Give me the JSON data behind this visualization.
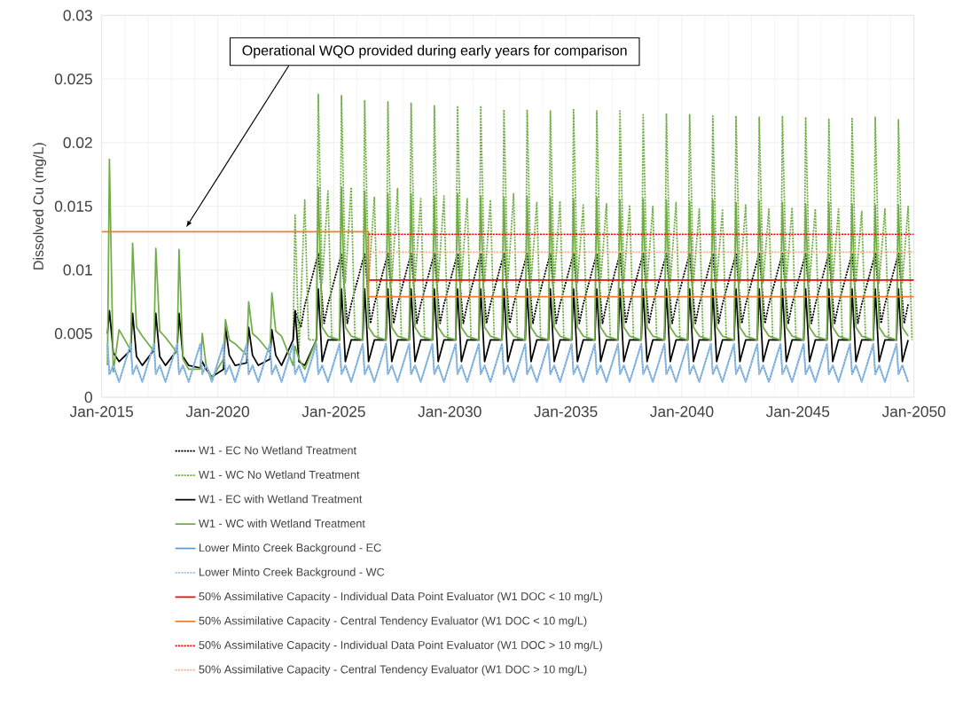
{
  "chart_data": {
    "type": "line",
    "ylabel": "Dissolved Cu (mg/L)",
    "xlim": [
      "2015-01",
      "2050-01"
    ],
    "ylim": [
      0,
      0.03
    ],
    "xticks": [
      {
        "value": "2015-01",
        "label": "Jan-2015"
      },
      {
        "value": "2020-01",
        "label": "Jan-2020"
      },
      {
        "value": "2025-01",
        "label": "Jan-2025"
      },
      {
        "value": "2030-01",
        "label": "Jan-2030"
      },
      {
        "value": "2035-01",
        "label": "Jan-2035"
      },
      {
        "value": "2040-01",
        "label": "Jan-2040"
      },
      {
        "value": "2045-01",
        "label": "Jan-2045"
      },
      {
        "value": "2050-01",
        "label": "Jan-2050"
      }
    ],
    "yticks": [
      0,
      0.005,
      0.01,
      0.015,
      0.02,
      0.025,
      0.03
    ],
    "grid": true,
    "legend": "bottom",
    "annotations": [
      "Operational WQO provided during early years for comparison"
    ],
    "series": [
      {
        "name": "W1 - EC No Wetland Treatment",
        "color": "#000000",
        "line_style": "dotted",
        "x": [
          "2023-05",
          "2023-08",
          "2023-10",
          "2024-05",
          "2024-08",
          "2024-10",
          "2025-05",
          "2025-08",
          "2025-10",
          "2026-05",
          "2026-08",
          "2026-10",
          "2027-05",
          "2027-08",
          "2027-10",
          "2028-05",
          "2028-08",
          "2028-10",
          "2029-05",
          "2029-08",
          "2029-10",
          "2030-05",
          "2030-08",
          "2030-10",
          "2031-05",
          "2031-08",
          "2031-10",
          "2032-05",
          "2032-08",
          "2032-10",
          "2033-05",
          "2033-08",
          "2033-10",
          "2034-05",
          "2034-08",
          "2034-10",
          "2035-05",
          "2035-08",
          "2035-10",
          "2036-05",
          "2036-08",
          "2036-10",
          "2037-05",
          "2037-08",
          "2037-10",
          "2038-05",
          "2038-08",
          "2038-10",
          "2039-05",
          "2039-08",
          "2039-10",
          "2040-05",
          "2040-08",
          "2040-10",
          "2041-05",
          "2041-08",
          "2041-10",
          "2042-05",
          "2042-08",
          "2042-10",
          "2043-05",
          "2043-08",
          "2043-10",
          "2044-05",
          "2044-08",
          "2044-10",
          "2045-05",
          "2045-08",
          "2045-10",
          "2046-05",
          "2046-08",
          "2046-10",
          "2047-05",
          "2047-08",
          "2047-10",
          "2048-05",
          "2048-08",
          "2048-10",
          "2049-05",
          "2049-08",
          "2049-10"
        ],
        "values": [
          0.0068,
          0.0055,
          0.0072,
          0.0113,
          0.0058,
          0.0073,
          0.0113,
          0.0058,
          0.0073,
          0.0113,
          0.0058,
          0.0073,
          0.0113,
          0.0058,
          0.0073,
          0.0113,
          0.0058,
          0.0073,
          0.0113,
          0.0058,
          0.0073,
          0.0113,
          0.0058,
          0.0073,
          0.0113,
          0.0058,
          0.0073,
          0.0113,
          0.0058,
          0.0073,
          0.0113,
          0.0058,
          0.0073,
          0.0113,
          0.0058,
          0.0073,
          0.0113,
          0.0058,
          0.0073,
          0.0113,
          0.0058,
          0.0073,
          0.0113,
          0.0058,
          0.0073,
          0.0113,
          0.0058,
          0.0073,
          0.0113,
          0.0058,
          0.0073,
          0.0113,
          0.0058,
          0.0073,
          0.0113,
          0.0058,
          0.0073,
          0.0113,
          0.0058,
          0.0073,
          0.0113,
          0.0058,
          0.0073,
          0.0113,
          0.0058,
          0.0073,
          0.0113,
          0.0058,
          0.0073,
          0.0113,
          0.0058,
          0.0073,
          0.0113,
          0.0058,
          0.0073,
          0.0113,
          0.0058,
          0.0073,
          0.0113,
          0.0058,
          0.0073
        ]
      },
      {
        "name": "W1 - WC No Wetland Treatment",
        "color": "#70ad47",
        "line_style": "dotted",
        "x": [
          "2023-04",
          "2023-05",
          "2023-07",
          "2023-10",
          "2023-12",
          "2024-04",
          "2024-05",
          "2024-07",
          "2024-10",
          "2024-12",
          "2025-04",
          "2025-05",
          "2025-07",
          "2025-10",
          "2025-12",
          "2026-04",
          "2026-05",
          "2026-07",
          "2026-10",
          "2026-12",
          "2027-04",
          "2027-05",
          "2027-07",
          "2027-10",
          "2027-12",
          "2028-04",
          "2028-05",
          "2028-07",
          "2028-10",
          "2028-12",
          "2029-04",
          "2029-05",
          "2029-07",
          "2029-10",
          "2029-12",
          "2030-04",
          "2030-05",
          "2030-07",
          "2030-10",
          "2030-12",
          "2031-04",
          "2031-05",
          "2031-07",
          "2031-10",
          "2031-12",
          "2032-04",
          "2032-05",
          "2032-07",
          "2032-10",
          "2032-12",
          "2033-04",
          "2033-05",
          "2033-07",
          "2033-10",
          "2033-12",
          "2034-04",
          "2034-05",
          "2034-07",
          "2034-10",
          "2034-12",
          "2035-04",
          "2035-05",
          "2035-07",
          "2035-10",
          "2035-12",
          "2036-04",
          "2036-05",
          "2036-07",
          "2036-10",
          "2036-12",
          "2037-04",
          "2037-05",
          "2037-07",
          "2037-10",
          "2037-12",
          "2038-04",
          "2038-05",
          "2038-07",
          "2038-10",
          "2038-12",
          "2039-04",
          "2039-05",
          "2039-07",
          "2039-10",
          "2039-12",
          "2040-04",
          "2040-05",
          "2040-07",
          "2040-10",
          "2040-12",
          "2041-04",
          "2041-05",
          "2041-07",
          "2041-10",
          "2041-12",
          "2042-04",
          "2042-05",
          "2042-07",
          "2042-10",
          "2042-12",
          "2043-04",
          "2043-05",
          "2043-07",
          "2043-10",
          "2043-12",
          "2044-04",
          "2044-05",
          "2044-07",
          "2044-10",
          "2044-12",
          "2045-04",
          "2045-05",
          "2045-07",
          "2045-10",
          "2045-12",
          "2046-04",
          "2046-05",
          "2046-07",
          "2046-10",
          "2046-12",
          "2047-04",
          "2047-05",
          "2047-07",
          "2047-10",
          "2047-12",
          "2048-04",
          "2048-05",
          "2048-07",
          "2048-10",
          "2048-12",
          "2049-04",
          "2049-05",
          "2049-07",
          "2049-10",
          "2049-12"
        ],
        "values": [
          0.0045,
          0.0143,
          0.0035,
          0.0155,
          0.0045,
          0.0045,
          0.0238,
          0.009,
          0.0162,
          0.0045,
          0.0045,
          0.0237,
          0.009,
          0.0165,
          0.0045,
          0.0045,
          0.0233,
          0.009,
          0.0157,
          0.0045,
          0.0045,
          0.0232,
          0.009,
          0.0164,
          0.0045,
          0.0045,
          0.0231,
          0.009,
          0.0156,
          0.0045,
          0.0045,
          0.0229,
          0.009,
          0.0158,
          0.0045,
          0.0045,
          0.0229,
          0.009,
          0.0156,
          0.0045,
          0.0045,
          0.0229,
          0.009,
          0.0155,
          0.0045,
          0.0045,
          0.0226,
          0.009,
          0.016,
          0.0045,
          0.0045,
          0.0226,
          0.009,
          0.0153,
          0.0045,
          0.0045,
          0.0225,
          0.009,
          0.0154,
          0.0045,
          0.0045,
          0.0226,
          0.009,
          0.0151,
          0.0045,
          0.0045,
          0.0225,
          0.009,
          0.0152,
          0.0045,
          0.0045,
          0.0225,
          0.009,
          0.0151,
          0.0045,
          0.0045,
          0.0222,
          0.009,
          0.015,
          0.0045,
          0.0045,
          0.0223,
          0.009,
          0.0153,
          0.0045,
          0.0045,
          0.0222,
          0.009,
          0.0148,
          0.0045,
          0.0045,
          0.0221,
          0.009,
          0.0147,
          0.0045,
          0.0045,
          0.0221,
          0.009,
          0.0151,
          0.0045,
          0.0045,
          0.022,
          0.009,
          0.0148,
          0.0045,
          0.0045,
          0.0221,
          0.009,
          0.0149,
          0.0045,
          0.0045,
          0.022,
          0.009,
          0.0148,
          0.0045,
          0.0045,
          0.0219,
          0.009,
          0.0148,
          0.0045,
          0.0045,
          0.0219,
          0.009,
          0.0146,
          0.0045,
          0.0045,
          0.022,
          0.009,
          0.0148,
          0.0045,
          0.0045,
          0.0218,
          0.009,
          0.015,
          0.0045
        ]
      },
      {
        "name": "W1 - EC with Wetland Treatment",
        "color": "#000000",
        "line_style": "solid",
        "x": [
          "2015-04",
          "2015-05",
          "2015-07",
          "2015-10",
          "2016-04",
          "2016-05",
          "2016-07",
          "2016-10",
          "2017-04",
          "2017-05",
          "2017-07",
          "2017-10",
          "2018-04",
          "2018-05",
          "2018-07",
          "2018-10",
          "2019-04",
          "2019-05",
          "2019-07",
          "2019-10",
          "2020-04",
          "2020-05",
          "2020-07",
          "2020-10",
          "2021-04",
          "2021-05",
          "2021-07",
          "2021-10",
          "2022-04",
          "2022-05",
          "2022-07",
          "2022-10",
          "2023-04",
          "2023-05",
          "2023-07",
          "2023-10",
          "2024-04",
          "2024-05",
          "2024-07",
          "2024-10",
          "2025-04",
          "2025-05",
          "2025-07",
          "2025-10",
          "2026-04",
          "2026-05",
          "2026-07",
          "2026-10",
          "2027-04",
          "2027-05",
          "2027-07",
          "2027-10",
          "2028-04",
          "2028-05",
          "2028-07",
          "2028-10",
          "2029-04",
          "2029-05",
          "2029-07",
          "2029-10",
          "2030-04",
          "2030-05",
          "2030-07",
          "2030-10",
          "2031-04",
          "2031-05",
          "2031-07",
          "2031-10",
          "2032-04",
          "2032-05",
          "2032-07",
          "2032-10",
          "2033-04",
          "2033-05",
          "2033-07",
          "2033-10",
          "2034-04",
          "2034-05",
          "2034-07",
          "2034-10",
          "2035-04",
          "2035-05",
          "2035-07",
          "2035-10",
          "2036-04",
          "2036-05",
          "2036-07",
          "2036-10",
          "2037-04",
          "2037-05",
          "2037-07",
          "2037-10",
          "2038-04",
          "2038-05",
          "2038-07",
          "2038-10",
          "2039-04",
          "2039-05",
          "2039-07",
          "2039-10",
          "2040-04",
          "2040-05",
          "2040-07",
          "2040-10",
          "2041-04",
          "2041-05",
          "2041-07",
          "2041-10",
          "2042-04",
          "2042-05",
          "2042-07",
          "2042-10",
          "2043-04",
          "2043-05",
          "2043-07",
          "2043-10",
          "2044-04",
          "2044-05",
          "2044-07",
          "2044-10",
          "2045-04",
          "2045-05",
          "2045-07",
          "2045-10",
          "2046-04",
          "2046-05",
          "2046-07",
          "2046-10",
          "2047-04",
          "2047-05",
          "2047-07",
          "2047-10",
          "2048-04",
          "2048-05",
          "2048-07",
          "2048-10",
          "2049-04",
          "2049-05",
          "2049-07",
          "2049-10"
        ],
        "values": [
          0.005,
          0.0068,
          0.0035,
          0.0028,
          0.0037,
          0.0066,
          0.0032,
          0.0025,
          0.0037,
          0.0066,
          0.0032,
          0.0025,
          0.0037,
          0.0066,
          0.0032,
          0.0025,
          0.0023,
          0.0028,
          0.0022,
          0.0016,
          0.0022,
          0.0055,
          0.0033,
          0.0025,
          0.0027,
          0.0055,
          0.0033,
          0.0025,
          0.003,
          0.0053,
          0.0033,
          0.0025,
          0.0045,
          0.0068,
          0.0028,
          0.0025,
          0.0045,
          0.0085,
          0.0028,
          0.0045,
          0.0045,
          0.0085,
          0.0028,
          0.0045,
          0.0045,
          0.0085,
          0.0028,
          0.0045,
          0.0045,
          0.0085,
          0.0028,
          0.0045,
          0.0045,
          0.0085,
          0.0028,
          0.0045,
          0.0045,
          0.0085,
          0.0028,
          0.0045,
          0.0045,
          0.0085,
          0.0028,
          0.0045,
          0.0045,
          0.0085,
          0.0028,
          0.0045,
          0.0045,
          0.0085,
          0.0028,
          0.0045,
          0.0045,
          0.0085,
          0.0028,
          0.0045,
          0.0045,
          0.0085,
          0.0028,
          0.0045,
          0.0045,
          0.0085,
          0.0028,
          0.0045,
          0.0045,
          0.0085,
          0.0028,
          0.0045,
          0.0045,
          0.0085,
          0.0028,
          0.0045,
          0.0045,
          0.0085,
          0.0028,
          0.0045,
          0.0045,
          0.0085,
          0.0028,
          0.0045,
          0.0045,
          0.0085,
          0.0028,
          0.0045,
          0.0045,
          0.0085,
          0.0028,
          0.0045,
          0.0045,
          0.0085,
          0.0028,
          0.0045,
          0.0045,
          0.0085,
          0.0028,
          0.0045,
          0.0045,
          0.0085,
          0.0028,
          0.0045,
          0.0045,
          0.0085,
          0.0028,
          0.0045,
          0.0045,
          0.0085,
          0.0028,
          0.0045,
          0.0045,
          0.0085,
          0.0028,
          0.0045,
          0.0045,
          0.0085,
          0.0028,
          0.0045,
          0.0045,
          0.0085,
          0.0028,
          0.0045
        ]
      },
      {
        "name": "W1 - WC with Wetland Treatment",
        "color": "#70ad47",
        "line_style": "solid",
        "x": [
          "2015-04",
          "2015-05",
          "2015-07",
          "2015-10",
          "2016-04",
          "2016-05",
          "2016-07",
          "2016-10",
          "2017-04",
          "2017-05",
          "2017-07",
          "2017-10",
          "2018-04",
          "2018-05",
          "2018-07",
          "2018-10",
          "2019-04",
          "2019-05",
          "2019-07",
          "2019-10",
          "2020-04",
          "2020-05",
          "2020-07",
          "2020-10",
          "2021-04",
          "2021-05",
          "2021-07",
          "2021-10",
          "2022-04",
          "2022-05",
          "2022-07",
          "2022-10",
          "2023-04",
          "2023-05",
          "2023-07",
          "2023-10",
          "2024-04",
          "2024-05",
          "2024-07",
          "2024-10",
          "2025-04",
          "2025-05",
          "2025-07",
          "2025-10",
          "2026-04",
          "2026-05",
          "2026-07",
          "2026-10",
          "2027-04",
          "2027-05",
          "2027-07",
          "2027-10",
          "2028-04",
          "2028-05",
          "2028-07",
          "2028-10",
          "2029-04",
          "2029-05",
          "2029-07",
          "2029-10",
          "2030-04",
          "2030-05",
          "2030-07",
          "2030-10",
          "2031-04",
          "2031-05",
          "2031-07",
          "2031-10",
          "2032-04",
          "2032-05",
          "2032-07",
          "2032-10",
          "2033-04",
          "2033-05",
          "2033-07",
          "2033-10",
          "2034-04",
          "2034-05",
          "2034-07",
          "2034-10",
          "2035-04",
          "2035-05",
          "2035-07",
          "2035-10",
          "2036-04",
          "2036-05",
          "2036-07",
          "2036-10",
          "2037-04",
          "2037-05",
          "2037-07",
          "2037-10",
          "2038-04",
          "2038-05",
          "2038-07",
          "2038-10",
          "2039-04",
          "2039-05",
          "2039-07",
          "2039-10",
          "2040-04",
          "2040-05",
          "2040-07",
          "2040-10",
          "2041-04",
          "2041-05",
          "2041-07",
          "2041-10",
          "2042-04",
          "2042-05",
          "2042-07",
          "2042-10",
          "2043-04",
          "2043-05",
          "2043-07",
          "2043-10",
          "2044-04",
          "2044-05",
          "2044-07",
          "2044-10",
          "2045-04",
          "2045-05",
          "2045-07",
          "2045-10",
          "2046-04",
          "2046-05",
          "2046-07",
          "2046-10",
          "2047-04",
          "2047-05",
          "2047-07",
          "2047-10",
          "2048-04",
          "2048-05",
          "2048-07",
          "2048-10",
          "2049-04",
          "2049-05",
          "2049-07",
          "2049-10"
        ],
        "values": [
          0.0025,
          0.0187,
          0.002,
          0.0053,
          0.0037,
          0.0121,
          0.0055,
          0.0048,
          0.0036,
          0.0117,
          0.0052,
          0.0047,
          0.0035,
          0.0116,
          0.003,
          0.0022,
          0.0022,
          0.005,
          0.0025,
          0.0015,
          0.003,
          0.0061,
          0.0045,
          0.0042,
          0.0033,
          0.0075,
          0.005,
          0.0046,
          0.0035,
          0.0082,
          0.0052,
          0.0048,
          0.0025,
          0.004,
          0.003,
          0.0022,
          0.0045,
          0.0165,
          0.0055,
          0.0048,
          0.0045,
          0.0165,
          0.0055,
          0.0048,
          0.0045,
          0.0162,
          0.0055,
          0.0048,
          0.0045,
          0.016,
          0.0055,
          0.0048,
          0.0045,
          0.016,
          0.0055,
          0.0048,
          0.0045,
          0.0158,
          0.0055,
          0.0048,
          0.0045,
          0.016,
          0.0055,
          0.0048,
          0.0045,
          0.0158,
          0.0055,
          0.0048,
          0.0045,
          0.0157,
          0.0055,
          0.0048,
          0.0045,
          0.0158,
          0.0055,
          0.0048,
          0.0045,
          0.0157,
          0.0055,
          0.0048,
          0.0045,
          0.0156,
          0.0055,
          0.0048,
          0.0045,
          0.0157,
          0.0055,
          0.0048,
          0.0045,
          0.0155,
          0.0055,
          0.0048,
          0.0045,
          0.0156,
          0.0055,
          0.0048,
          0.0045,
          0.0155,
          0.0055,
          0.0048,
          0.0045,
          0.0154,
          0.0055,
          0.0048,
          0.0045,
          0.0155,
          0.0055,
          0.0048,
          0.0045,
          0.0153,
          0.0055,
          0.0048,
          0.0045,
          0.0154,
          0.0055,
          0.0048,
          0.0045,
          0.0153,
          0.0055,
          0.0048,
          0.0045,
          0.0152,
          0.0055,
          0.0048,
          0.0045,
          0.0153,
          0.0055,
          0.0048,
          0.0045,
          0.0152,
          0.0055,
          0.0048,
          0.0045,
          0.0151,
          0.0055,
          0.0048,
          0.0045,
          0.0151,
          0.0055,
          0.0048
        ]
      },
      {
        "name": "Lower Minto Creek Background - EC",
        "color": "#5b9bd5",
        "line_style": "solid",
        "x": [
          "2015-04",
          "2015-05",
          "2015-07",
          "2015-10",
          "2016-04",
          "2016-05",
          "2016-07",
          "2016-10",
          "2017-04",
          "2017-05",
          "2017-07",
          "2017-10",
          "2018-04",
          "2018-05",
          "2018-07",
          "2018-10",
          "2019-04",
          "2019-05",
          "2019-07",
          "2019-10",
          "2020-04",
          "2020-05",
          "2020-07",
          "2020-10",
          "2021-04",
          "2021-05",
          "2021-07",
          "2021-10",
          "2022-04",
          "2022-05",
          "2022-07",
          "2022-10",
          "2023-04",
          "2023-05",
          "2023-07",
          "2023-10",
          "2024-04",
          "2024-05",
          "2024-07",
          "2024-10",
          "2025-04",
          "2025-05",
          "2025-07",
          "2025-10",
          "2026-04",
          "2026-05",
          "2026-07",
          "2026-10",
          "2027-04",
          "2027-05",
          "2027-07",
          "2027-10",
          "2028-04",
          "2028-05",
          "2028-07",
          "2028-10",
          "2029-04",
          "2029-05",
          "2029-07",
          "2029-10",
          "2030-04",
          "2030-05",
          "2030-07",
          "2030-10",
          "2031-04",
          "2031-05",
          "2031-07",
          "2031-10",
          "2032-04",
          "2032-05",
          "2032-07",
          "2032-10",
          "2033-04",
          "2033-05",
          "2033-07",
          "2033-10",
          "2034-04",
          "2034-05",
          "2034-07",
          "2034-10",
          "2035-04",
          "2035-05",
          "2035-07",
          "2035-10",
          "2036-04",
          "2036-05",
          "2036-07",
          "2036-10",
          "2037-04",
          "2037-05",
          "2037-07",
          "2037-10",
          "2038-04",
          "2038-05",
          "2038-07",
          "2038-10",
          "2039-04",
          "2039-05",
          "2039-07",
          "2039-10",
          "2040-04",
          "2040-05",
          "2040-07",
          "2040-10",
          "2041-04",
          "2041-05",
          "2041-07",
          "2041-10",
          "2042-04",
          "2042-05",
          "2042-07",
          "2042-10",
          "2043-04",
          "2043-05",
          "2043-07",
          "2043-10",
          "2044-04",
          "2044-05",
          "2044-07",
          "2044-10",
          "2045-04",
          "2045-05",
          "2045-07",
          "2045-10",
          "2046-04",
          "2046-05",
          "2046-07",
          "2046-10",
          "2047-04",
          "2047-05",
          "2047-07",
          "2047-10",
          "2048-04",
          "2048-05",
          "2048-07",
          "2048-10",
          "2049-04",
          "2049-05",
          "2049-07",
          "2049-10"
        ],
        "values": [
          0.0042,
          0.0018,
          0.0025,
          0.0012,
          0.0042,
          0.0018,
          0.0025,
          0.0012,
          0.0042,
          0.0018,
          0.0025,
          0.0012,
          0.0042,
          0.0018,
          0.0025,
          0.0012,
          0.0042,
          0.0018,
          0.0025,
          0.0012,
          0.0042,
          0.0018,
          0.0025,
          0.0012,
          0.0042,
          0.0018,
          0.0025,
          0.0012,
          0.0042,
          0.0018,
          0.0025,
          0.0012,
          0.0042,
          0.0018,
          0.0025,
          0.0012,
          0.0042,
          0.0018,
          0.0025,
          0.0012,
          0.0042,
          0.0018,
          0.0025,
          0.0012,
          0.0042,
          0.0018,
          0.0025,
          0.0012,
          0.0042,
          0.0018,
          0.0025,
          0.0012,
          0.0042,
          0.0018,
          0.0025,
          0.0012,
          0.0042,
          0.0018,
          0.0025,
          0.0012,
          0.0042,
          0.0018,
          0.0025,
          0.0012,
          0.0042,
          0.0018,
          0.0025,
          0.0012,
          0.0042,
          0.0018,
          0.0025,
          0.0012,
          0.0042,
          0.0018,
          0.0025,
          0.0012,
          0.0042,
          0.0018,
          0.0025,
          0.0012,
          0.0042,
          0.0018,
          0.0025,
          0.0012,
          0.0042,
          0.0018,
          0.0025,
          0.0012,
          0.0042,
          0.0018,
          0.0025,
          0.0012,
          0.0042,
          0.0018,
          0.0025,
          0.0012,
          0.0042,
          0.0018,
          0.0025,
          0.0012,
          0.0042,
          0.0018,
          0.0025,
          0.0012,
          0.0042,
          0.0018,
          0.0025,
          0.0012,
          0.0042,
          0.0018,
          0.0025,
          0.0012,
          0.0042,
          0.0018,
          0.0025,
          0.0012,
          0.0042,
          0.0018,
          0.0025,
          0.0012,
          0.0042,
          0.0018,
          0.0025,
          0.0012,
          0.0042,
          0.0018,
          0.0025,
          0.0012,
          0.0042,
          0.0018,
          0.0025,
          0.0012,
          0.0042,
          0.0018,
          0.0025,
          0.0012,
          0.0042,
          0.0018,
          0.0025,
          0.0012
        ]
      },
      {
        "name": "Lower Minto Creek Background - WC",
        "color": "#9dc3e6",
        "line_style": "dotted",
        "x": [
          "2015-04",
          "2015-05",
          "2015-07",
          "2015-10",
          "2016-04",
          "2016-05",
          "2016-07",
          "2016-10",
          "2017-04",
          "2017-05",
          "2017-07",
          "2017-10",
          "2018-04",
          "2018-05",
          "2018-07",
          "2018-10",
          "2019-04",
          "2019-05",
          "2019-07",
          "2019-10",
          "2020-04",
          "2020-05",
          "2020-07",
          "2020-10",
          "2021-04",
          "2021-05",
          "2021-07",
          "2021-10",
          "2022-04",
          "2022-05",
          "2022-07",
          "2022-10",
          "2023-04",
          "2023-05",
          "2023-07",
          "2023-10",
          "2024-04",
          "2024-05",
          "2024-07",
          "2024-10",
          "2025-04",
          "2025-05",
          "2025-07",
          "2025-10",
          "2026-04",
          "2026-05",
          "2026-07",
          "2026-10",
          "2027-04",
          "2027-05",
          "2027-07",
          "2027-10",
          "2028-04",
          "2028-05",
          "2028-07",
          "2028-10",
          "2029-04",
          "2029-05",
          "2029-07",
          "2029-10",
          "2030-04",
          "2030-05",
          "2030-07",
          "2030-10",
          "2031-04",
          "2031-05",
          "2031-07",
          "2031-10",
          "2032-04",
          "2032-05",
          "2032-07",
          "2032-10",
          "2033-04",
          "2033-05",
          "2033-07",
          "2033-10",
          "2034-04",
          "2034-05",
          "2034-07",
          "2034-10",
          "2035-04",
          "2035-05",
          "2035-07",
          "2035-10",
          "2036-04",
          "2036-05",
          "2036-07",
          "2036-10",
          "2037-04",
          "2037-05",
          "2037-07",
          "2037-10",
          "2038-04",
          "2038-05",
          "2038-07",
          "2038-10",
          "2039-04",
          "2039-05",
          "2039-07",
          "2039-10",
          "2040-04",
          "2040-05",
          "2040-07",
          "2040-10",
          "2041-04",
          "2041-05",
          "2041-07",
          "2041-10",
          "2042-04",
          "2042-05",
          "2042-07",
          "2042-10",
          "2043-04",
          "2043-05",
          "2043-07",
          "2043-10",
          "2044-04",
          "2044-05",
          "2044-07",
          "2044-10",
          "2045-04",
          "2045-05",
          "2045-07",
          "2045-10",
          "2046-04",
          "2046-05",
          "2046-07",
          "2046-10",
          "2047-04",
          "2047-05",
          "2047-07",
          "2047-10",
          "2048-04",
          "2048-05",
          "2048-07",
          "2048-10",
          "2049-04",
          "2049-05",
          "2049-07",
          "2049-10"
        ],
        "values": [
          0.0042,
          0.0018,
          0.0025,
          0.0012,
          0.0042,
          0.0018,
          0.0025,
          0.0012,
          0.0042,
          0.0018,
          0.0025,
          0.0012,
          0.0042,
          0.0018,
          0.0025,
          0.0012,
          0.0042,
          0.0018,
          0.0025,
          0.0012,
          0.0042,
          0.0018,
          0.0025,
          0.0012,
          0.0042,
          0.0018,
          0.0025,
          0.0012,
          0.0042,
          0.0018,
          0.0025,
          0.0012,
          0.0042,
          0.0018,
          0.0025,
          0.0012,
          0.0042,
          0.0018,
          0.0025,
          0.0012,
          0.0042,
          0.0018,
          0.0025,
          0.0012,
          0.0042,
          0.0018,
          0.0025,
          0.0012,
          0.0042,
          0.0018,
          0.0025,
          0.0012,
          0.0042,
          0.0018,
          0.0025,
          0.0012,
          0.0042,
          0.0018,
          0.0025,
          0.0012,
          0.0042,
          0.0018,
          0.0025,
          0.0012,
          0.0042,
          0.0018,
          0.0025,
          0.0012,
          0.0042,
          0.0018,
          0.0025,
          0.0012,
          0.0042,
          0.0018,
          0.0025,
          0.0012,
          0.0042,
          0.0018,
          0.0025,
          0.0012,
          0.0042,
          0.0018,
          0.0025,
          0.0012,
          0.0042,
          0.0018,
          0.0025,
          0.0012,
          0.0042,
          0.0018,
          0.0025,
          0.0012,
          0.0042,
          0.0018,
          0.0025,
          0.0012,
          0.0042,
          0.0018,
          0.0025,
          0.0012,
          0.0042,
          0.0018,
          0.0025,
          0.0012,
          0.0042,
          0.0018,
          0.0025,
          0.0012,
          0.0042,
          0.0018,
          0.0025,
          0.0012,
          0.0042,
          0.0018,
          0.0025,
          0.0012,
          0.0042,
          0.0018,
          0.0025,
          0.0012,
          0.0042,
          0.0018,
          0.0025,
          0.0012,
          0.0042,
          0.0018,
          0.0025,
          0.0012,
          0.0042,
          0.0018,
          0.0025,
          0.0012,
          0.0042,
          0.0018,
          0.0025,
          0.0012,
          0.0042,
          0.0018,
          0.0025,
          0.0012
        ]
      },
      {
        "name": "50% Assimilative Capacity - Individual Data Point Evaluator (W1 DOC < 10 mg/L)",
        "color": "#ff0000",
        "line_style": "solid",
        "x": [
          "2026-07",
          "2050-01"
        ],
        "values": [
          0.0092,
          0.0092
        ]
      },
      {
        "name": "50% Assimilative Capacity - Central Tendency Evaluator (W1 DOC < 10 mg/L)",
        "color": "#ed7d31",
        "line_style": "solid",
        "x": [
          "2015-01",
          "2026-07",
          "2026-07",
          "2050-01"
        ],
        "values": [
          0.013,
          0.013,
          0.0079,
          0.0079
        ]
      },
      {
        "name": "50% Assimilative Capacity - Individual Data Point Evaluator (W1 DOC > 10 mg/L)",
        "color": "#ff0000",
        "line_style": "dotted",
        "x": [
          "2026-07",
          "2050-01"
        ],
        "values": [
          0.0128,
          0.0128
        ]
      },
      {
        "name": "50% Assimilative Capacity - Central Tendency Evaluator (W1 DOC > 10 mg/L)",
        "color": "#f4b183",
        "line_style": "dotted",
        "x": [
          "2026-09",
          "2050-01"
        ],
        "values": [
          0.0114,
          0.0114
        ]
      }
    ]
  }
}
